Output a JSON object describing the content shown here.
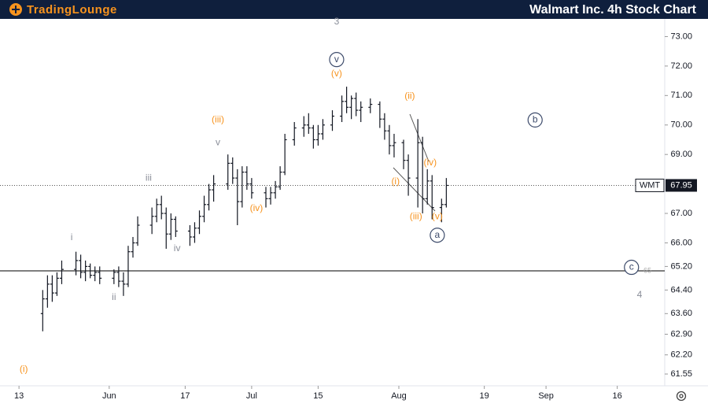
{
  "chart_data": {
    "type": "ohlc",
    "title": "Walmart Inc. 4h Stock Chart",
    "brand": "TradingLounge",
    "symbol": "WMT",
    "last_price": 67.95,
    "level": {
      "value": 65.05,
      "label": "65"
    },
    "color": "#131722",
    "x": [
      5,
      6,
      7,
      8,
      9,
      12,
      13,
      14,
      15,
      16,
      17,
      20,
      21,
      22,
      23,
      24,
      25,
      28,
      29,
      30,
      31,
      32,
      33,
      36,
      37,
      38,
      39,
      40,
      41,
      44,
      45,
      46,
      47,
      48,
      49,
      52,
      53,
      54,
      55,
      56,
      58,
      60,
      61,
      62,
      63,
      64,
      66,
      68,
      69,
      70,
      71,
      72,
      74,
      76,
      77,
      78,
      79,
      81,
      82,
      84,
      85,
      86,
      87,
      89,
      90
    ],
    "open": [
      63.6,
      64.1,
      64.6,
      64.3,
      64.8,
      65.1,
      65.4,
      65.0,
      65.2,
      64.9,
      65.0,
      64.8,
      65.0,
      64.7,
      64.6,
      65.7,
      66.0,
      66.6,
      66.9,
      67.3,
      67.0,
      66.3,
      66.8,
      66.4,
      66.2,
      66.5,
      66.9,
      67.3,
      67.8,
      68.0,
      68.7,
      68.2,
      67.4,
      68.4,
      68.0,
      67.7,
      67.5,
      67.7,
      67.9,
      68.4,
      69.5,
      69.9,
      70.0,
      69.9,
      69.5,
      69.7,
      70.0,
      70.3,
      70.8,
      70.6,
      70.9,
      70.5,
      70.6,
      70.7,
      70.2,
      69.8,
      69.3,
      69.4,
      68.8,
      68.2,
      69.4,
      67.5,
      68.1,
      67.2,
      67.3
    ],
    "high": [
      64.4,
      64.9,
      64.9,
      65.0,
      65.4,
      65.7,
      65.6,
      65.4,
      65.3,
      65.2,
      65.2,
      65.1,
      65.2,
      65.0,
      65.9,
      66.2,
      66.9,
      67.2,
      67.5,
      67.6,
      67.2,
      67.0,
      66.9,
      66.6,
      66.7,
      67.1,
      67.6,
      68.0,
      68.3,
      69.0,
      68.9,
      68.5,
      68.6,
      68.6,
      68.2,
      67.9,
      67.9,
      68.1,
      68.6,
      69.7,
      70.1,
      70.3,
      70.4,
      70.0,
      70.0,
      70.2,
      70.5,
      71.0,
      71.3,
      71.0,
      71.1,
      70.8,
      70.9,
      70.8,
      70.4,
      70.0,
      69.7,
      69.5,
      69.0,
      70.2,
      69.6,
      68.5,
      68.3,
      67.5,
      68.2
    ],
    "low": [
      63.0,
      63.8,
      64.0,
      64.2,
      64.6,
      64.9,
      64.8,
      64.7,
      64.8,
      64.7,
      64.6,
      64.6,
      64.5,
      64.2,
      64.5,
      65.5,
      65.9,
      66.3,
      66.7,
      66.8,
      65.8,
      66.1,
      66.2,
      65.9,
      66.0,
      66.3,
      66.7,
      67.1,
      67.4,
      67.8,
      68.0,
      66.6,
      67.2,
      67.8,
      67.5,
      67.2,
      67.3,
      67.5,
      67.8,
      68.3,
      69.3,
      69.6,
      69.7,
      69.2,
      69.3,
      69.5,
      69.8,
      70.1,
      70.4,
      70.2,
      70.3,
      70.1,
      70.4,
      69.9,
      69.5,
      69.0,
      68.9,
      68.5,
      67.6,
      67.2,
      67.0,
      67.3,
      66.8,
      66.7,
      67.2
    ],
    "close": [
      64.1,
      64.6,
      64.3,
      64.8,
      65.1,
      65.4,
      65.0,
      65.2,
      64.9,
      65.0,
      64.8,
      65.0,
      64.7,
      64.6,
      65.7,
      66.0,
      66.6,
      66.9,
      67.3,
      67.0,
      66.3,
      66.8,
      66.4,
      66.2,
      66.5,
      66.9,
      67.3,
      67.8,
      68.0,
      68.7,
      68.2,
      67.4,
      68.4,
      68.0,
      67.7,
      67.5,
      67.7,
      67.9,
      68.4,
      69.5,
      69.9,
      70.0,
      69.9,
      69.5,
      69.7,
      70.0,
      70.3,
      70.8,
      70.6,
      70.9,
      70.5,
      70.6,
      70.7,
      70.2,
      69.8,
      69.3,
      69.4,
      68.8,
      68.2,
      69.4,
      67.5,
      68.1,
      67.2,
      67.3,
      67.95
    ],
    "xlim": [
      -4,
      136
    ],
    "ylim": [
      61.15,
      73.6
    ],
    "xticks": [
      {
        "value": 0,
        "label": "13"
      },
      {
        "value": 19,
        "label": "Jun"
      },
      {
        "value": 35,
        "label": "17"
      },
      {
        "value": 49,
        "label": "Jul"
      },
      {
        "value": 63,
        "label": "15"
      },
      {
        "value": 80,
        "label": "Aug"
      },
      {
        "value": 98,
        "label": "19"
      },
      {
        "value": 111,
        "label": "Sep"
      },
      {
        "value": 126,
        "label": "16"
      }
    ],
    "yticks": [
      {
        "value": 73,
        "label": "73.00"
      },
      {
        "value": 72,
        "label": "72.00"
      },
      {
        "value": 71,
        "label": "71.00"
      },
      {
        "value": 70,
        "label": "70.00"
      },
      {
        "value": 69,
        "label": "69.00"
      },
      {
        "value": 67,
        "label": "67.00"
      },
      {
        "value": 66,
        "label": "66.00"
      },
      {
        "value": 65.2,
        "label": "65.20"
      },
      {
        "value": 64.4,
        "label": "64.40"
      },
      {
        "value": 63.6,
        "label": "63.60"
      },
      {
        "value": 62.9,
        "label": "62.90"
      },
      {
        "value": 62.2,
        "label": "62.20"
      },
      {
        "value": 61.55,
        "label": "61.55"
      }
    ],
    "annotations": [
      {
        "text": "(i)",
        "x": 1,
        "y": 61.7,
        "color": "#f7931e"
      },
      {
        "text": "i",
        "x": 11.1,
        "y": 66.18,
        "color": "#8a8e99"
      },
      {
        "text": "ii",
        "x": 20,
        "y": 64.15,
        "color": "#8a8e99"
      },
      {
        "text": "iii",
        "x": 27.3,
        "y": 68.2,
        "color": "#8a8e99"
      },
      {
        "text": "iv",
        "x": 33.3,
        "y": 65.8,
        "color": "#8a8e99"
      },
      {
        "text": "v",
        "x": 41.9,
        "y": 69.4,
        "color": "#8a8e99"
      },
      {
        "text": "(iii)",
        "x": 41.9,
        "y": 70.17,
        "color": "#f7931e"
      },
      {
        "text": "(iv)",
        "x": 50,
        "y": 67.17,
        "color": "#f7931e"
      },
      {
        "text": "3",
        "x": 66.9,
        "y": 73.5,
        "color": "#8a8e99",
        "large": true
      },
      {
        "text": "v",
        "x": 66.9,
        "y": 72.22,
        "color": "#3d4b6b",
        "circled": true
      },
      {
        "text": "(v)",
        "x": 66.9,
        "y": 71.74,
        "color": "#f7931e"
      },
      {
        "text": "(ii)",
        "x": 82.3,
        "y": 70.97,
        "color": "#f7931e"
      },
      {
        "text": "(i)",
        "x": 79.3,
        "y": 68.08,
        "color": "#f7931e"
      },
      {
        "text": "(iv)",
        "x": 86.6,
        "y": 68.72,
        "color": "#f7931e"
      },
      {
        "text": "(iii)",
        "x": 83.6,
        "y": 66.88,
        "color": "#f7931e"
      },
      {
        "text": "(v)",
        "x": 88.1,
        "y": 66.88,
        "color": "#f7931e"
      },
      {
        "text": "a",
        "x": 88.1,
        "y": 66.26,
        "color": "#3d4b6b",
        "circled": true
      },
      {
        "text": "b",
        "x": 108.7,
        "y": 70.17,
        "color": "#3d4b6b",
        "circled": true
      },
      {
        "text": "c",
        "x": 129,
        "y": 65.17,
        "color": "#3d4b6b",
        "circled": true
      },
      {
        "text": "4",
        "x": 130.7,
        "y": 64.23,
        "color": "#8a8e99",
        "large": true
      }
    ]
  }
}
